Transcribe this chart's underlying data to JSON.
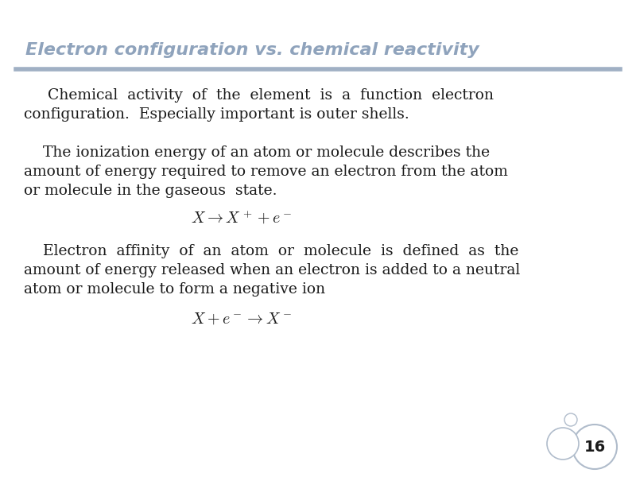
{
  "title": "Electron configuration vs. chemical reactivity",
  "slide_number": "16",
  "bg_color": "#ffffff",
  "title_color": "#8fa3bc",
  "title_fontsize": 16,
  "separator_color": "#a0b0c4",
  "text_color": "#1a1a1a",
  "body_fontsize": 13.5,
  "para1_line1": "Chemical  activity  of  the  element  is  a  function  electron",
  "para1_line2": "configuration.  Especially important is outer shells.",
  "para2_line1": "    The ionization energy of an atom or molecule describes the",
  "para2_line2": "amount of energy required to remove an electron from the atom",
  "para2_line3": "or molecule in the gaseous  state.",
  "para3_line1": "    Electron  affinity  of  an  atom  or  molecule  is  defined  as  the",
  "para3_line2": "amount of energy released when an electron is added to a neutral",
  "para3_line3": "atom or molecule to form a negative ion",
  "circle_border_color": "#b0bccb",
  "circle_bg_color": "#ffffff",
  "number_color": "#1a1a1a",
  "number_fontsize": 14
}
